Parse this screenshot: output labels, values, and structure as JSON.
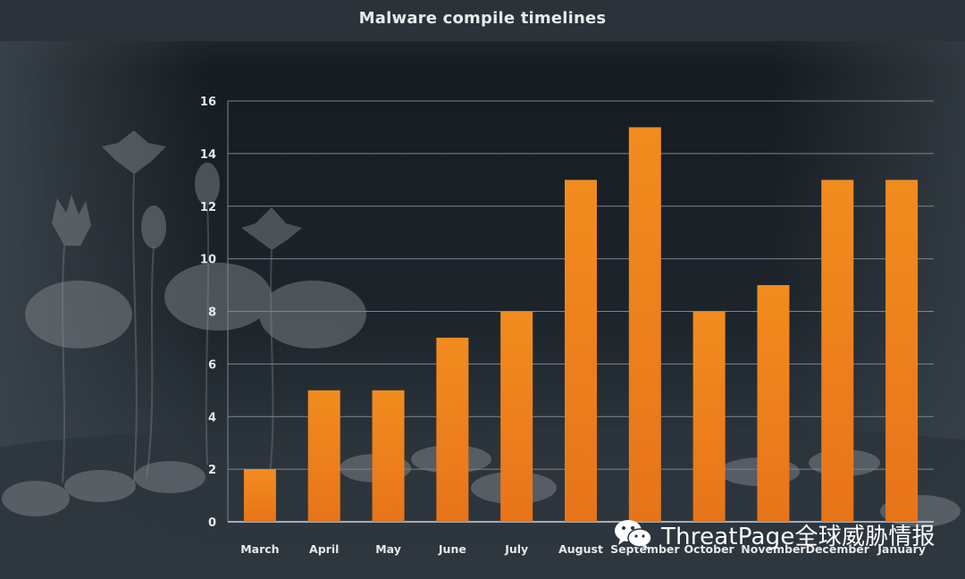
{
  "chart_data": {
    "type": "bar",
    "title": "Malware compile timelines",
    "xlabel": "",
    "ylabel": "",
    "categories": [
      "March",
      "April",
      "May",
      "June",
      "July",
      "August",
      "September",
      "October",
      "November",
      "December",
      "January"
    ],
    "values": [
      2,
      5,
      5,
      7,
      8,
      13,
      15,
      8,
      9,
      13,
      13
    ],
    "ylim": [
      0,
      16
    ],
    "yticks": [
      0,
      2,
      4,
      6,
      8,
      10,
      12,
      14,
      16
    ],
    "grid": true,
    "bar_color_top": "#f28c1e",
    "bar_color_bottom": "#e8741a"
  },
  "watermark": {
    "icon": "wechat-icon",
    "text": "ThreatPage全球威胁情报"
  },
  "colors": {
    "background_top": "#1a2026",
    "background_bottom": "#3e474f",
    "grid": "#7d858c",
    "tick_text": "#e6e8ea"
  }
}
